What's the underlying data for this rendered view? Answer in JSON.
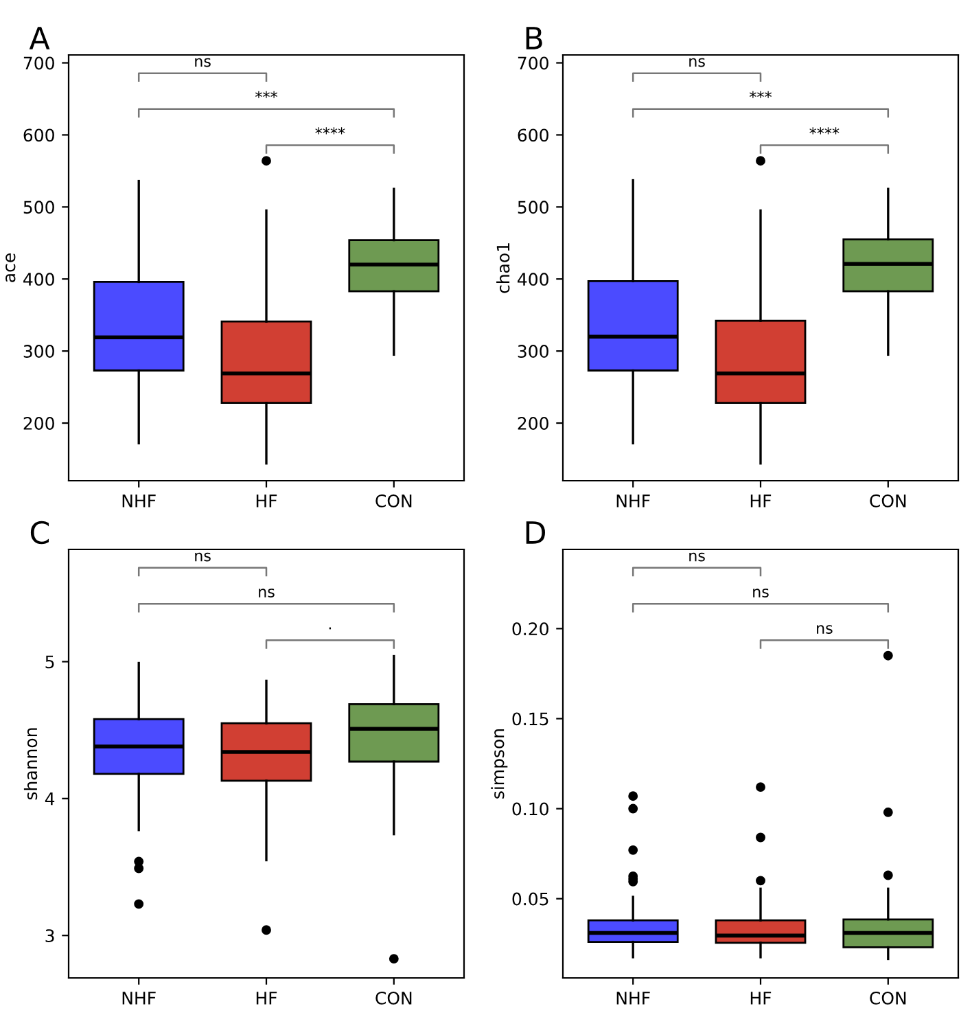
{
  "chart_data": [
    {
      "type": "box",
      "title": "A",
      "ylabel": "ace",
      "categories": [
        "NHF",
        "HF",
        "CON"
      ],
      "colors": [
        "#4b4bff",
        "#d13f33",
        "#6e9a52"
      ],
      "ylim": [
        120,
        711
      ],
      "yticks": [
        200,
        300,
        400,
        500,
        600,
        700
      ],
      "grid": false,
      "legend": false,
      "boxes": [
        {
          "low": 172,
          "q1": 273,
          "median": 319,
          "q3": 396,
          "high": 536
        },
        {
          "low": 144,
          "q1": 228,
          "median": 269,
          "q3": 341,
          "high": 495,
          "outliers": [
            564
          ]
        },
        {
          "low": 295,
          "q1": 383,
          "median": 420,
          "q3": 454,
          "high": 525
        }
      ],
      "annotations": [
        "ns",
        "***",
        "****"
      ]
    },
    {
      "type": "box",
      "title": "B",
      "ylabel": "chao1",
      "categories": [
        "NHF",
        "HF",
        "CON"
      ],
      "colors": [
        "#4b4bff",
        "#d13f33",
        "#6e9a52"
      ],
      "ylim": [
        120,
        711
      ],
      "yticks": [
        200,
        300,
        400,
        500,
        600,
        700
      ],
      "grid": false,
      "legend": false,
      "boxes": [
        {
          "low": 172,
          "q1": 273,
          "median": 320,
          "q3": 397,
          "high": 537
        },
        {
          "low": 144,
          "q1": 228,
          "median": 269,
          "q3": 342,
          "high": 495,
          "outliers": [
            564
          ]
        },
        {
          "low": 295,
          "q1": 383,
          "median": 421,
          "q3": 455,
          "high": 525
        }
      ],
      "annotations": [
        "ns",
        "***",
        "****"
      ]
    },
    {
      "type": "box",
      "title": "C",
      "ylabel": "shannon",
      "categories": [
        "NHF",
        "HF",
        "CON"
      ],
      "colors": [
        "#4b4bff",
        "#d13f33",
        "#6e9a52"
      ],
      "ylim": [
        2.69,
        5.82
      ],
      "yticks": [
        3,
        4,
        5
      ],
      "grid": false,
      "legend": false,
      "boxes": [
        {
          "low": 3.77,
          "q1": 4.18,
          "median": 4.38,
          "q3": 4.58,
          "high": 4.99,
          "outliers": [
            3.54,
            3.49,
            3.23
          ]
        },
        {
          "low": 3.55,
          "q1": 4.13,
          "median": 4.34,
          "q3": 4.55,
          "high": 4.86,
          "outliers": [
            3.04
          ]
        },
        {
          "low": 3.74,
          "q1": 4.27,
          "median": 4.51,
          "q3": 4.69,
          "high": 5.04,
          "outliers": [
            2.83
          ]
        }
      ],
      "annotations": [
        "ns",
        "ns",
        "·"
      ]
    },
    {
      "type": "box",
      "title": "D",
      "ylabel": "simpson",
      "categories": [
        "NHF",
        "HF",
        "CON"
      ],
      "colors": [
        "#4b4bff",
        "#d13f33",
        "#6e9a52"
      ],
      "ylim": [
        0.006,
        0.244
      ],
      "yticks": [
        {
          "value": 0.05,
          "label": "0.05"
        },
        {
          "value": 0.1,
          "label": "0.10"
        },
        {
          "value": 0.15,
          "label": "0.15"
        },
        {
          "value": 0.2,
          "label": "0.20"
        }
      ],
      "grid": false,
      "legend": false,
      "boxes": [
        {
          "low": 0.0175,
          "q1": 0.026,
          "median": 0.031,
          "q3": 0.038,
          "high": 0.051,
          "outliers": [
            0.107,
            0.1,
            0.077,
            0.0625,
            0.061,
            0.0595
          ]
        },
        {
          "low": 0.0175,
          "q1": 0.0255,
          "median": 0.0295,
          "q3": 0.038,
          "high": 0.0555,
          "outliers": [
            0.112,
            0.084,
            0.06
          ]
        },
        {
          "low": 0.0165,
          "q1": 0.023,
          "median": 0.031,
          "q3": 0.0385,
          "high": 0.0555,
          "outliers": [
            0.185,
            0.098,
            0.063
          ]
        }
      ],
      "annotations": [
        "ns",
        "ns",
        "ns"
      ]
    }
  ]
}
